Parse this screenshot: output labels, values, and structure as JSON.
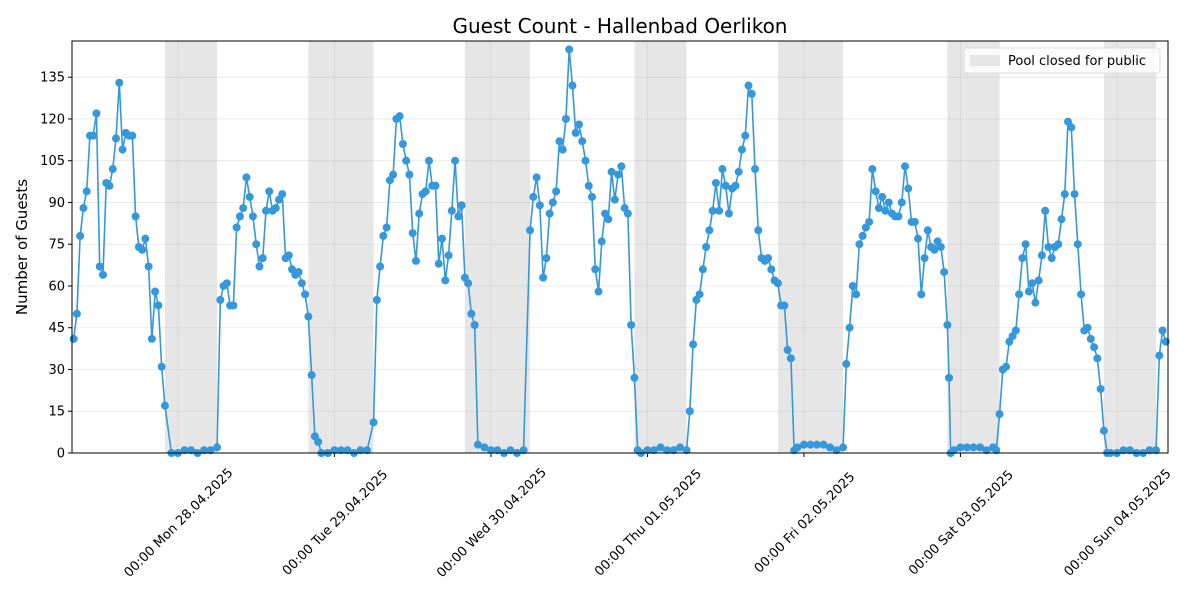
{
  "chart_data": {
    "type": "line",
    "title": "Guest Count - Hallenbad Oerlikon",
    "ylabel": "Number of Guests",
    "color": "#3498db",
    "grid": true,
    "legend": "upper right",
    "closed": {
      "label": "Pool closed for public",
      "color": "#e6e6e6",
      "spans": [
        [
          "2025-04-27 22:00",
          "2025-04-28 06:00"
        ],
        [
          "2025-04-28 20:00",
          "2025-04-29 06:00"
        ],
        [
          "2025-04-29 20:00",
          "2025-04-30 06:00"
        ],
        [
          "2025-04-30 22:00",
          "2025-05-01 06:00"
        ],
        [
          "2025-05-01 20:00",
          "2025-05-02 06:00"
        ],
        [
          "2025-05-02 22:00",
          "2025-05-03 06:00"
        ],
        [
          "2025-05-03 22:00",
          "2025-05-04 06:00"
        ]
      ]
    },
    "xlim": [
      "2025-04-27 07:45",
      "2025-05-04 07:50"
    ],
    "xticks": [
      {
        "value": "2025-04-28 00:00",
        "label": "00:00 Mon 28.04.2025"
      },
      {
        "value": "2025-04-29 00:00",
        "label": "00:00 Tue 29.04.2025"
      },
      {
        "value": "2025-04-30 00:00",
        "label": "00:00 Wed 30.04.2025"
      },
      {
        "value": "2025-05-01 00:00",
        "label": "00:00 Thu 01.05.2025"
      },
      {
        "value": "2025-05-02 00:00",
        "label": "00:00 Fri 02.05.2025"
      },
      {
        "value": "2025-05-03 00:00",
        "label": "00:00 Sat 03.05.2025"
      },
      {
        "value": "2025-05-04 00:00",
        "label": "00:00 Sun 04.05.2025"
      }
    ],
    "ylim": [
      0,
      148
    ],
    "yticks": [
      0,
      15,
      30,
      45,
      60,
      75,
      90,
      105,
      120,
      135
    ],
    "x": [
      "2025-04-27 08:00",
      "2025-04-27 08:30",
      "2025-04-27 09:00",
      "2025-04-27 09:30",
      "2025-04-27 10:00",
      "2025-04-27 10:30",
      "2025-04-27 11:00",
      "2025-04-27 11:30",
      "2025-04-27 12:00",
      "2025-04-27 12:30",
      "2025-04-27 13:00",
      "2025-04-27 13:30",
      "2025-04-27 14:00",
      "2025-04-27 14:30",
      "2025-04-27 15:00",
      "2025-04-27 15:30",
      "2025-04-27 16:00",
      "2025-04-27 16:30",
      "2025-04-27 17:00",
      "2025-04-27 17:30",
      "2025-04-27 18:00",
      "2025-04-27 18:30",
      "2025-04-27 19:00",
      "2025-04-27 19:30",
      "2025-04-27 20:00",
      "2025-04-27 20:30",
      "2025-04-27 21:00",
      "2025-04-27 21:30",
      "2025-04-27 22:00",
      "2025-04-27 23:00",
      "2025-04-28 00:00",
      "2025-04-28 01:00",
      "2025-04-28 02:00",
      "2025-04-28 03:00",
      "2025-04-28 04:00",
      "2025-04-28 05:00",
      "2025-04-28 06:00",
      "2025-04-28 06:30",
      "2025-04-28 07:00",
      "2025-04-28 07:30",
      "2025-04-28 08:00",
      "2025-04-28 08:30",
      "2025-04-28 09:00",
      "2025-04-28 09:30",
      "2025-04-28 10:00",
      "2025-04-28 10:30",
      "2025-04-28 11:00",
      "2025-04-28 11:30",
      "2025-04-28 12:00",
      "2025-04-28 12:30",
      "2025-04-28 13:00",
      "2025-04-28 13:30",
      "2025-04-28 14:00",
      "2025-04-28 14:30",
      "2025-04-28 15:00",
      "2025-04-28 15:30",
      "2025-04-28 16:00",
      "2025-04-28 16:30",
      "2025-04-28 17:00",
      "2025-04-28 17:30",
      "2025-04-28 18:00",
      "2025-04-28 18:30",
      "2025-04-28 19:00",
      "2025-04-28 19:30",
      "2025-04-28 20:00",
      "2025-04-28 20:30",
      "2025-04-28 21:00",
      "2025-04-28 21:30",
      "2025-04-28 22:00",
      "2025-04-28 23:00",
      "2025-04-29 00:00",
      "2025-04-29 01:00",
      "2025-04-29 02:00",
      "2025-04-29 03:00",
      "2025-04-29 04:00",
      "2025-04-29 05:00",
      "2025-04-29 06:00",
      "2025-04-29 06:30",
      "2025-04-29 07:00",
      "2025-04-29 07:30",
      "2025-04-29 08:00",
      "2025-04-29 08:30",
      "2025-04-29 09:00",
      "2025-04-29 09:30",
      "2025-04-29 10:00",
      "2025-04-29 10:30",
      "2025-04-29 11:00",
      "2025-04-29 11:30",
      "2025-04-29 12:00",
      "2025-04-29 12:30",
      "2025-04-29 13:00",
      "2025-04-29 13:30",
      "2025-04-29 14:00",
      "2025-04-29 14:30",
      "2025-04-29 15:00",
      "2025-04-29 15:30",
      "2025-04-29 16:00",
      "2025-04-29 16:30",
      "2025-04-29 17:00",
      "2025-04-29 17:30",
      "2025-04-29 18:00",
      "2025-04-29 18:30",
      "2025-04-29 19:00",
      "2025-04-29 19:30",
      "2025-04-29 20:00",
      "2025-04-29 20:30",
      "2025-04-29 21:00",
      "2025-04-29 21:30",
      "2025-04-29 22:00",
      "2025-04-29 23:00",
      "2025-04-30 00:00",
      "2025-04-30 01:00",
      "2025-04-30 02:00",
      "2025-04-30 03:00",
      "2025-04-30 04:00",
      "2025-04-30 05:00",
      "2025-04-30 06:00",
      "2025-04-30 06:30",
      "2025-04-30 07:00",
      "2025-04-30 07:30",
      "2025-04-30 08:00",
      "2025-04-30 08:30",
      "2025-04-30 09:00",
      "2025-04-30 09:30",
      "2025-04-30 10:00",
      "2025-04-30 10:30",
      "2025-04-30 11:00",
      "2025-04-30 11:30",
      "2025-04-30 12:00",
      "2025-04-30 12:30",
      "2025-04-30 13:00",
      "2025-04-30 13:30",
      "2025-04-30 14:00",
      "2025-04-30 14:30",
      "2025-04-30 15:00",
      "2025-04-30 15:30",
      "2025-04-30 16:00",
      "2025-04-30 16:30",
      "2025-04-30 17:00",
      "2025-04-30 17:30",
      "2025-04-30 18:00",
      "2025-04-30 18:30",
      "2025-04-30 19:00",
      "2025-04-30 19:30",
      "2025-04-30 20:00",
      "2025-04-30 20:30",
      "2025-04-30 21:00",
      "2025-04-30 21:30",
      "2025-04-30 22:00",
      "2025-04-30 22:30",
      "2025-04-30 23:00",
      "2025-05-01 00:00",
      "2025-05-01 01:00",
      "2025-05-01 02:00",
      "2025-05-01 03:00",
      "2025-05-01 04:00",
      "2025-05-01 05:00",
      "2025-05-01 06:00",
      "2025-05-01 06:30",
      "2025-05-01 07:00",
      "2025-05-01 07:30",
      "2025-05-01 08:00",
      "2025-05-01 08:30",
      "2025-05-01 09:00",
      "2025-05-01 09:30",
      "2025-05-01 10:00",
      "2025-05-01 10:30",
      "2025-05-01 11:00",
      "2025-05-01 11:30",
      "2025-05-01 12:00",
      "2025-05-01 12:30",
      "2025-05-01 13:00",
      "2025-05-01 13:30",
      "2025-05-01 14:00",
      "2025-05-01 14:30",
      "2025-05-01 15:00",
      "2025-05-01 15:30",
      "2025-05-01 16:00",
      "2025-05-01 16:30",
      "2025-05-01 17:00",
      "2025-05-01 17:30",
      "2025-05-01 18:00",
      "2025-05-01 18:30",
      "2025-05-01 19:00",
      "2025-05-01 19:30",
      "2025-05-01 20:00",
      "2025-05-01 20:30",
      "2025-05-01 21:00",
      "2025-05-01 21:30",
      "2025-05-01 22:00",
      "2025-05-01 22:30",
      "2025-05-01 23:00",
      "2025-05-02 00:00",
      "2025-05-02 01:00",
      "2025-05-02 02:00",
      "2025-05-02 03:00",
      "2025-05-02 04:00",
      "2025-05-02 05:00",
      "2025-05-02 06:00",
      "2025-05-02 06:30",
      "2025-05-02 07:00",
      "2025-05-02 07:30",
      "2025-05-02 08:00",
      "2025-05-02 08:30",
      "2025-05-02 09:00",
      "2025-05-02 09:30",
      "2025-05-02 10:00",
      "2025-05-02 10:30",
      "2025-05-02 11:00",
      "2025-05-02 11:30",
      "2025-05-02 12:00",
      "2025-05-02 12:30",
      "2025-05-02 13:00",
      "2025-05-02 13:30",
      "2025-05-02 14:00",
      "2025-05-02 14:30",
      "2025-05-02 15:00",
      "2025-05-02 15:30",
      "2025-05-02 16:00",
      "2025-05-02 16:30",
      "2025-05-02 17:00",
      "2025-05-02 17:30",
      "2025-05-02 18:00",
      "2025-05-02 18:30",
      "2025-05-02 19:00",
      "2025-05-02 19:30",
      "2025-05-02 20:00",
      "2025-05-02 20:30",
      "2025-05-02 21:00",
      "2025-05-02 21:30",
      "2025-05-02 22:00",
      "2025-05-02 22:15",
      "2025-05-02 22:30",
      "2025-05-02 23:00",
      "2025-05-03 00:00",
      "2025-05-03 01:00",
      "2025-05-03 02:00",
      "2025-05-03 03:00",
      "2025-05-03 04:00",
      "2025-05-03 05:00",
      "2025-05-03 05:30",
      "2025-05-03 06:00",
      "2025-05-03 06:30",
      "2025-05-03 07:00",
      "2025-05-03 07:30",
      "2025-05-03 08:00",
      "2025-05-03 08:30",
      "2025-05-03 09:00",
      "2025-05-03 09:30",
      "2025-05-03 10:00",
      "2025-05-03 10:30",
      "2025-05-03 11:00",
      "2025-05-03 11:30",
      "2025-05-03 12:00",
      "2025-05-03 12:30",
      "2025-05-03 13:00",
      "2025-05-03 13:30",
      "2025-05-03 14:00",
      "2025-05-03 14:30",
      "2025-05-03 15:00",
      "2025-05-03 15:30",
      "2025-05-03 16:00",
      "2025-05-03 16:30",
      "2025-05-03 17:00",
      "2025-05-03 17:30",
      "2025-05-03 18:00",
      "2025-05-03 18:30",
      "2025-05-03 19:00",
      "2025-05-03 19:30",
      "2025-05-03 20:00",
      "2025-05-03 20:30",
      "2025-05-03 21:00",
      "2025-05-03 21:30",
      "2025-05-03 22:00",
      "2025-05-03 22:30",
      "2025-05-03 23:00",
      "2025-05-04 00:00",
      "2025-05-04 01:00",
      "2025-05-04 02:00",
      "2025-05-04 03:00",
      "2025-05-04 04:00",
      "2025-05-04 05:00",
      "2025-05-04 06:00",
      "2025-05-04 06:30",
      "2025-05-04 07:00",
      "2025-05-04 07:30"
    ],
    "values": [
      41,
      50,
      78,
      88,
      94,
      114,
      114,
      122,
      67,
      64,
      97,
      96,
      102,
      113,
      133,
      109,
      115,
      114,
      114,
      85,
      74,
      73,
      77,
      67,
      41,
      58,
      53,
      31,
      17,
      0,
      0,
      1,
      1,
      0,
      1,
      1,
      2,
      55,
      60,
      61,
      53,
      53,
      81,
      85,
      88,
      99,
      92,
      85,
      75,
      67,
      70,
      87,
      94,
      87,
      88,
      91,
      93,
      70,
      71,
      66,
      64,
      65,
      61,
      57,
      49,
      28,
      6,
      4,
      0,
      0,
      1,
      1,
      1,
      0,
      1,
      1,
      11,
      55,
      67,
      78,
      81,
      98,
      100,
      120,
      121,
      111,
      105,
      100,
      79,
      69,
      86,
      93,
      94,
      105,
      96,
      96,
      68,
      77,
      62,
      71,
      87,
      105,
      85,
      89,
      63,
      61,
      50,
      46,
      3,
      2,
      1,
      1,
      0,
      1,
      0,
      1,
      80,
      92,
      99,
      89,
      63,
      70,
      86,
      90,
      94,
      112,
      109,
      120,
      145,
      132,
      115,
      118,
      112,
      105,
      96,
      92,
      66,
      58,
      76,
      86,
      84,
      101,
      91,
      100,
      103,
      88,
      86,
      46,
      27,
      1,
      0,
      1,
      1,
      2,
      1,
      1,
      2,
      1,
      15,
      39,
      55,
      57,
      66,
      74,
      80,
      87,
      97,
      87,
      102,
      96,
      86,
      95,
      96,
      101,
      109,
      114,
      132,
      129,
      102,
      80,
      70,
      69,
      70,
      66,
      62,
      61,
      53,
      53,
      37,
      34,
      1,
      2,
      3,
      3,
      3,
      3,
      2,
      1,
      2,
      32,
      45,
      60,
      57,
      75,
      78,
      81,
      83,
      102,
      94,
      88,
      92,
      87,
      90,
      86,
      85,
      85,
      90,
      103,
      95,
      83,
      83,
      77,
      57,
      70,
      80,
      74,
      73,
      76,
      74,
      65,
      46,
      27,
      0,
      1,
      2,
      2,
      2,
      2,
      1,
      2,
      1,
      14,
      30,
      31,
      40,
      42,
      44,
      57,
      70,
      75,
      58,
      61,
      54,
      62,
      71,
      87,
      74,
      70,
      74,
      75,
      84,
      93,
      119,
      117,
      93,
      75,
      57,
      44,
      45,
      41,
      38,
      34,
      23,
      8,
      0,
      0,
      0,
      1,
      1,
      0,
      0,
      1,
      1,
      35,
      44,
      40
    ]
  }
}
